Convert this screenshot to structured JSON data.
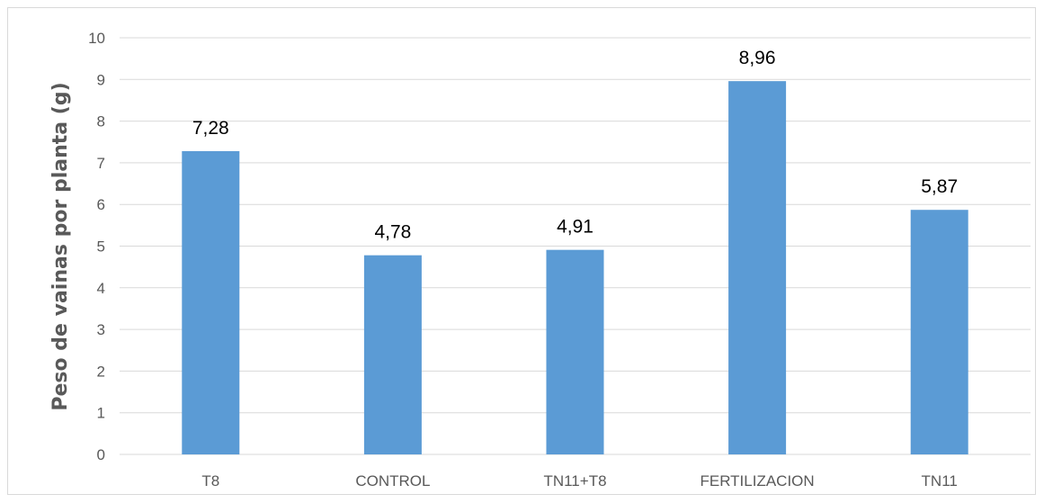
{
  "chart_data": {
    "type": "bar",
    "title": "",
    "xlabel": "",
    "ylabel": "Peso de vainas por planta (g)",
    "categories": [
      "T8",
      "CONTROL",
      "TN11+T8",
      "FERTILIZACION",
      "TN11"
    ],
    "values": [
      7.28,
      4.78,
      4.91,
      8.96,
      5.87
    ],
    "value_labels": [
      "7,28",
      "4,78",
      "4,91",
      "8,96",
      "5,87"
    ],
    "ylim": [
      0,
      10
    ],
    "yticks": [
      "0",
      "1",
      "2",
      "3",
      "4",
      "5",
      "6",
      "7",
      "8",
      "9",
      "10"
    ],
    "grid": true,
    "legend": "none",
    "colors": {
      "bar": "#5b9bd5",
      "grid": "#d9d9d9",
      "text": "#595959"
    }
  }
}
